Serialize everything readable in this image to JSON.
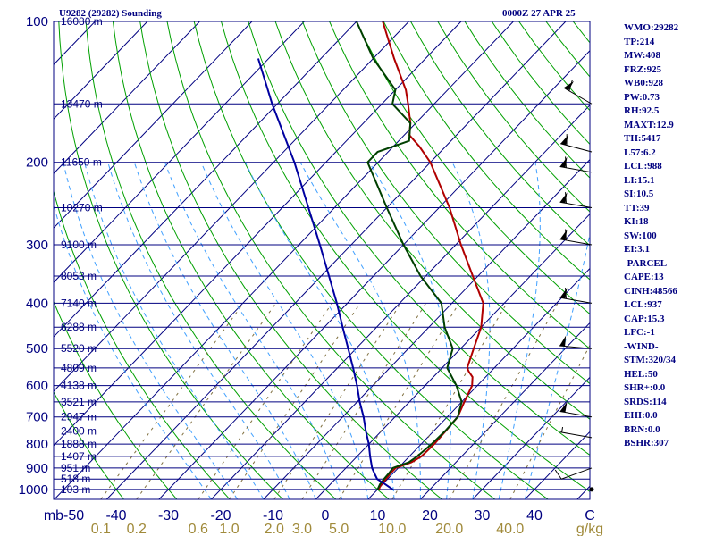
{
  "header": {
    "station": "U9282 (29282) Sounding",
    "time": "0000Z 27 APR 25"
  },
  "indices": [
    "WMO:29282",
    "TP:214",
    "MW:408",
    "FRZ:925",
    "WB0:928",
    "PW:0.73",
    "RH:92.5",
    "MAXT:12.9",
    "TH:5417",
    "L57:6.2",
    "LCL:988",
    "LI:15.1",
    "SI:10.5",
    "TT:39",
    "KI:18",
    "SW:100",
    "EI:3.1",
    "-PARCEL-",
    "CAPE:13",
    "CINH:48566",
    "LCL:937",
    "CAP:15.3",
    "LFC:-1",
    "-WIND-",
    "STM:320/34",
    "HEL:50",
    "SHR+:0.0",
    "SRDS:114",
    "EHI:0.0",
    "BRN:0.0",
    "BSHR:307"
  ],
  "colors": {
    "temperature": "#b00000",
    "dewpoint": "#004000",
    "parcel": "#0000a0",
    "isobar": "#000080",
    "isotherm": "#000080",
    "dry_adiabat": "#00a000",
    "moist_adiabat": "#40a0ff",
    "mixing_ratio": "#807040",
    "axis_text": "#000080",
    "mixing_text": "#a08a3a"
  },
  "chart_data": {
    "type": "line",
    "title": "U9282 (29282) Sounding",
    "xlabel": "C",
    "ylabel": "mb",
    "x_unit_right": "C",
    "mixing_unit": "g/kg",
    "pressure_ticks": [
      100,
      200,
      300,
      400,
      500,
      600,
      700,
      800,
      900,
      1000
    ],
    "pressure_tick_labels": [
      "100",
      "200",
      "300",
      "400",
      "500",
      "600",
      "700",
      "800",
      "900",
      "1000"
    ],
    "temperature_ticks": [
      -50,
      -40,
      -30,
      -20,
      -10,
      0,
      10,
      20,
      30,
      40
    ],
    "temperature_tick_labels": [
      "mb-50",
      "-40",
      "-30",
      "-20",
      "-10",
      "0",
      "10",
      "20",
      "30",
      "40"
    ],
    "mixing_ratio_values": [
      0.1,
      0.2,
      0.6,
      1.0,
      2.0,
      3.0,
      5.0,
      10.0,
      20.0,
      40.0
    ],
    "mixing_ratio_labels": [
      "0.1",
      "0.2",
      "0.6",
      "1.0",
      "2.0",
      "3.0",
      "5.0",
      "10.0",
      "20.0",
      "40.0"
    ],
    "height_levels": [
      {
        "p": 100,
        "label": "16080 m"
      },
      {
        "p": 150,
        "label": "13470 m"
      },
      {
        "p": 200,
        "label": "11650 m"
      },
      {
        "p": 250,
        "label": "10270 m"
      },
      {
        "p": 300,
        "label": "9100 m"
      },
      {
        "p": 350,
        "label": "8053 m"
      },
      {
        "p": 400,
        "label": "7140 m"
      },
      {
        "p": 450,
        "label": "6288 m"
      },
      {
        "p": 500,
        "label": "5520 m"
      },
      {
        "p": 550,
        "label": "4809 m"
      },
      {
        "p": 600,
        "label": "4138 m"
      },
      {
        "p": 650,
        "label": "3521 m"
      },
      {
        "p": 700,
        "label": "2947 m"
      },
      {
        "p": 750,
        "label": "2400 m"
      },
      {
        "p": 800,
        "label": "1888 m"
      },
      {
        "p": 850,
        "label": "1407 m"
      },
      {
        "p": 900,
        "label": "951 m"
      },
      {
        "p": 950,
        "label": "518 m"
      },
      {
        "p": 1000,
        "label": "103 m"
      }
    ],
    "series": [
      {
        "key": "temperature",
        "points": [
          [
            1000,
            10.3
          ],
          [
            990,
            10
          ],
          [
            975,
            9.8
          ],
          [
            950,
            9.7
          ],
          [
            925,
            9.5
          ],
          [
            900,
            9.5
          ],
          [
            875,
            11.5
          ],
          [
            850,
            12.3
          ],
          [
            800,
            12.5
          ],
          [
            750,
            12.3
          ],
          [
            700,
            12.0
          ],
          [
            650,
            10.5
          ],
          [
            600,
            9.0
          ],
          [
            575,
            7.5
          ],
          [
            560,
            5.8
          ],
          [
            550,
            4.8
          ],
          [
            500,
            2.5
          ],
          [
            450,
            0.0
          ],
          [
            400,
            -4.0
          ],
          [
            350,
            -11.0
          ],
          [
            300,
            -19.0
          ],
          [
            250,
            -28.0
          ],
          [
            200,
            -40.0
          ],
          [
            185,
            -45.0
          ],
          [
            175,
            -49.0
          ],
          [
            165,
            -51.0
          ],
          [
            150,
            -55.0
          ],
          [
            140,
            -58.0
          ],
          [
            120,
            -66.0
          ],
          [
            100,
            -75.0
          ]
        ]
      },
      {
        "key": "dewpoint",
        "points": [
          [
            1000,
            10.0
          ],
          [
            975,
            9.5
          ],
          [
            950,
            9.3
          ],
          [
            925,
            9.2
          ],
          [
            900,
            9.0
          ],
          [
            875,
            11.0
          ],
          [
            850,
            11.5
          ],
          [
            800,
            12.0
          ],
          [
            750,
            12.2
          ],
          [
            700,
            12.0
          ],
          [
            650,
            10.0
          ],
          [
            600,
            6.0
          ],
          [
            550,
            1.0
          ],
          [
            500,
            -1.5
          ],
          [
            450,
            -7.0
          ],
          [
            400,
            -12.0
          ],
          [
            350,
            -21.0
          ],
          [
            300,
            -30.0
          ],
          [
            250,
            -40.0
          ],
          [
            200,
            -52.0
          ],
          [
            190,
            -52.0
          ],
          [
            180,
            -48.0
          ],
          [
            165,
            -51.0
          ],
          [
            150,
            -58.0
          ],
          [
            140,
            -60.0
          ],
          [
            120,
            -70.0
          ],
          [
            100,
            -80.0
          ]
        ]
      },
      {
        "key": "parcel",
        "points": [
          [
            1000,
            12.9
          ],
          [
            975,
            10.5
          ],
          [
            950,
            8.0
          ],
          [
            925,
            6.5
          ],
          [
            900,
            5.0
          ],
          [
            850,
            2.5
          ],
          [
            800,
            0.0
          ],
          [
            750,
            -3.0
          ],
          [
            700,
            -6.0
          ],
          [
            650,
            -9.5
          ],
          [
            600,
            -13.0
          ],
          [
            550,
            -17.0
          ],
          [
            500,
            -21.5
          ],
          [
            450,
            -26.5
          ],
          [
            400,
            -32.0
          ],
          [
            350,
            -38.5
          ],
          [
            300,
            -46.0
          ],
          [
            250,
            -55.0
          ],
          [
            200,
            -66.0
          ],
          [
            150,
            -81.0
          ],
          [
            120,
            -92.0
          ]
        ]
      }
    ],
    "winds": [
      {
        "p": 1000,
        "dir": 90,
        "spd": 0
      },
      {
        "p": 900,
        "dir": 250,
        "spd": 10
      },
      {
        "p": 775,
        "dir": 280,
        "spd": 5
      },
      {
        "p": 700,
        "dir": 280,
        "spd": 50
      },
      {
        "p": 500,
        "dir": 275,
        "spd": 50
      },
      {
        "p": 400,
        "dir": 280,
        "spd": 60
      },
      {
        "p": 300,
        "dir": 280,
        "spd": 60
      },
      {
        "p": 250,
        "dir": 280,
        "spd": 60
      },
      {
        "p": 210,
        "dir": 280,
        "spd": 60
      },
      {
        "p": 190,
        "dir": 285,
        "spd": 60
      },
      {
        "p": 150,
        "dir": 300,
        "spd": 60
      }
    ]
  }
}
